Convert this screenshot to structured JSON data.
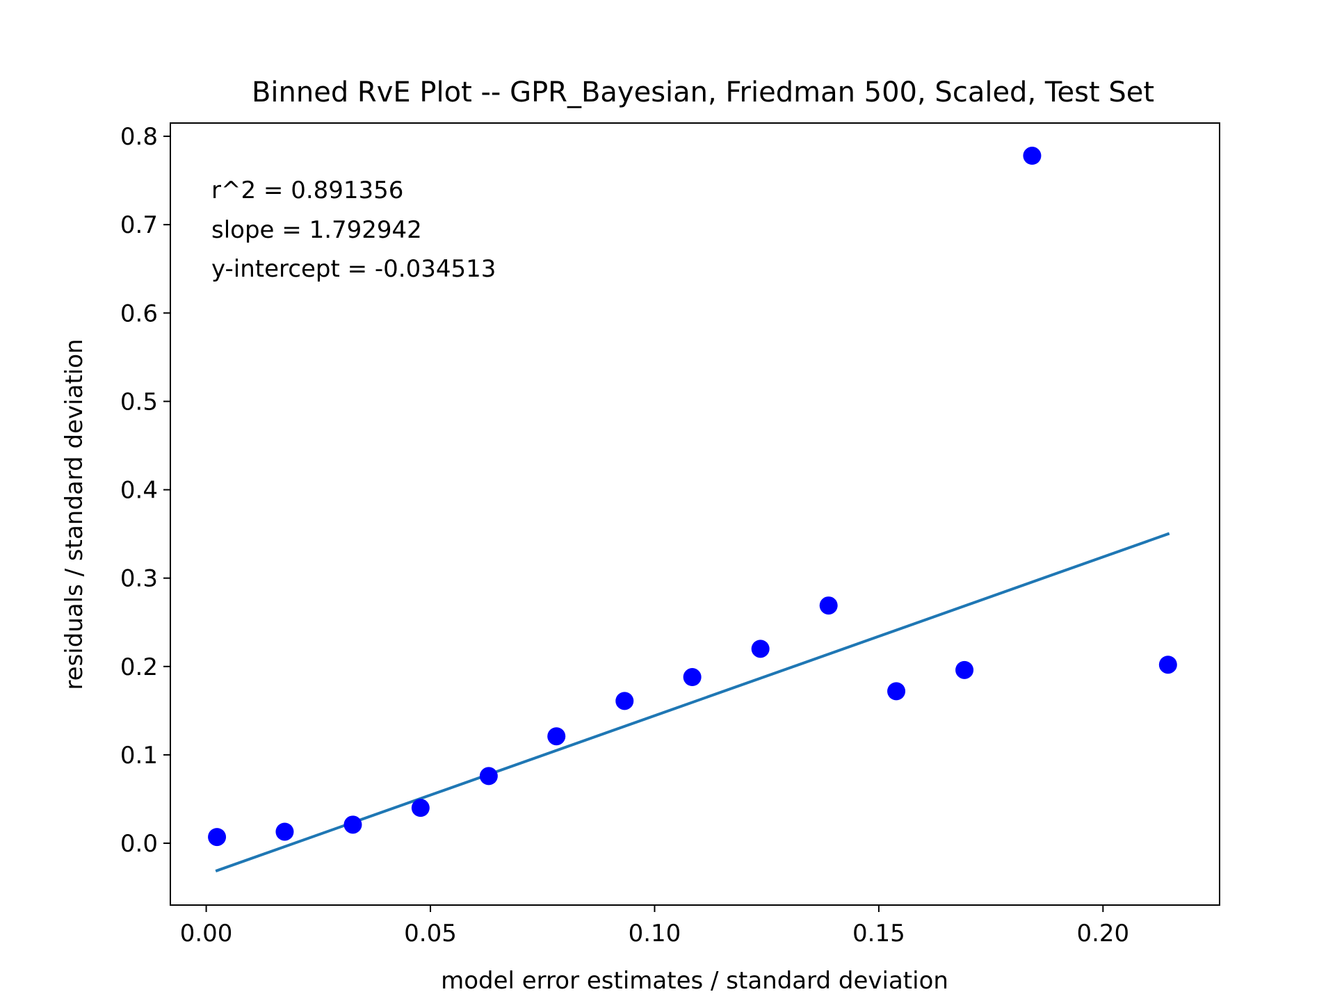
{
  "chart_data": {
    "type": "scatter",
    "title": "Binned RvE Plot -- GPR_Bayesian, Friedman 500, Scaled, Test Set",
    "xlabel": "model error estimates / standard deviation",
    "ylabel": "residuals / standard deviation",
    "xlim": [
      -0.008,
      0.226
    ],
    "ylim": [
      -0.07,
      0.815
    ],
    "x_ticks": [
      {
        "value": 0.0,
        "label": "0.00"
      },
      {
        "value": 0.05,
        "label": "0.05"
      },
      {
        "value": 0.1,
        "label": "0.10"
      },
      {
        "value": 0.15,
        "label": "0.15"
      },
      {
        "value": 0.2,
        "label": "0.20"
      }
    ],
    "y_ticks": [
      {
        "value": 0.0,
        "label": "0.0"
      },
      {
        "value": 0.1,
        "label": "0.1"
      },
      {
        "value": 0.2,
        "label": "0.2"
      },
      {
        "value": 0.3,
        "label": "0.3"
      },
      {
        "value": 0.4,
        "label": "0.4"
      },
      {
        "value": 0.5,
        "label": "0.5"
      },
      {
        "value": 0.6,
        "label": "0.6"
      },
      {
        "value": 0.7,
        "label": "0.7"
      },
      {
        "value": 0.8,
        "label": "0.8"
      }
    ],
    "grid": false,
    "legend": "none",
    "series": [
      {
        "type": "scatter",
        "color": "#0000ff",
        "points": [
          {
            "x": 0.0024,
            "y": 0.007
          },
          {
            "x": 0.0175,
            "y": 0.013
          },
          {
            "x": 0.0327,
            "y": 0.021
          },
          {
            "x": 0.0478,
            "y": 0.04
          },
          {
            "x": 0.063,
            "y": 0.076
          },
          {
            "x": 0.0781,
            "y": 0.121
          },
          {
            "x": 0.0933,
            "y": 0.161
          },
          {
            "x": 0.1084,
            "y": 0.188
          },
          {
            "x": 0.1236,
            "y": 0.22
          },
          {
            "x": 0.1388,
            "y": 0.269
          },
          {
            "x": 0.1539,
            "y": 0.172
          },
          {
            "x": 0.1691,
            "y": 0.196
          },
          {
            "x": 0.1842,
            "y": 0.778
          },
          {
            "x": 0.2145,
            "y": 0.202
          }
        ]
      },
      {
        "type": "line",
        "color": "#1f77b4",
        "points": [
          {
            "x": 0.0024,
            "y": -0.031
          },
          {
            "x": 0.2145,
            "y": 0.35
          }
        ]
      }
    ],
    "annotations": [
      "r^2 = 0.891356",
      "slope = 1.792942",
      "y-intercept = -0.034513"
    ]
  }
}
